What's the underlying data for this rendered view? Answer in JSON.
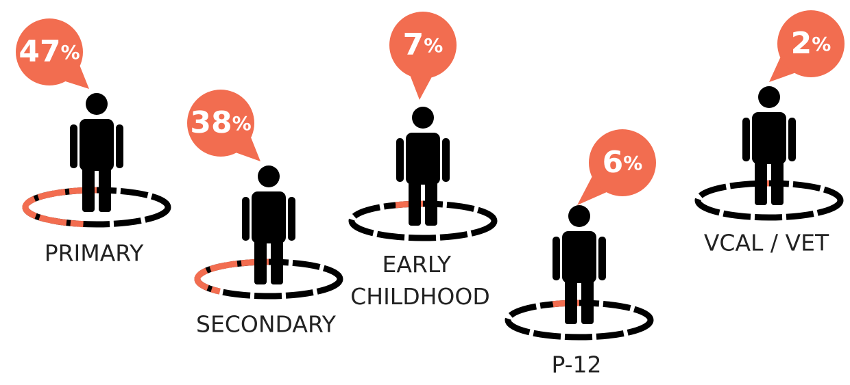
{
  "chart_data": {
    "type": "pictogram",
    "categories": [
      "PRIMARY",
      "SECONDARY",
      "EARLY CHILDHOOD",
      "P-12",
      "VCAL / VET"
    ],
    "values": [
      47,
      38,
      7,
      6,
      2
    ],
    "value_labels": [
      "47%",
      "38%",
      "7%",
      "6%",
      "2%"
    ],
    "color": "#f26d50"
  }
}
